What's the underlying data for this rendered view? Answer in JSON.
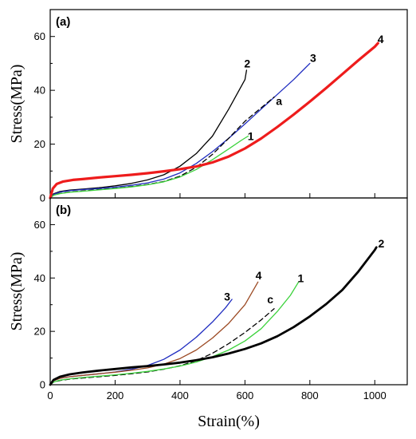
{
  "chart_data": [
    {
      "panel": "(a)",
      "type": "line",
      "xlim": [
        0,
        1100
      ],
      "ylim": [
        0,
        70
      ],
      "xticks": [],
      "yticks": [
        0,
        20,
        40,
        60
      ],
      "ylabel": "Stress(MPa)",
      "xlabel": "",
      "grid": false,
      "series": [
        {
          "label": "2",
          "color": "#000000",
          "width": 1.3,
          "dash": "",
          "points": [
            [
              0,
              0
            ],
            [
              10,
              1.5
            ],
            [
              30,
              2.4
            ],
            [
              60,
              2.9
            ],
            [
              100,
              3.3
            ],
            [
              150,
              3.8
            ],
            [
              200,
              4.5
            ],
            [
              250,
              5.4
            ],
            [
              300,
              6.7
            ],
            [
              350,
              8.6
            ],
            [
              400,
              11.8
            ],
            [
              450,
              16.5
            ],
            [
              500,
              23
            ],
            [
              550,
              33
            ],
            [
              600,
              44
            ],
            [
              605,
              47.5
            ]
          ],
          "label_at": [
            607,
            50
          ]
        },
        {
          "label": "3",
          "color": "#1f2cc0",
          "width": 1.3,
          "dash": "",
          "points": [
            [
              0,
              0
            ],
            [
              10,
              1.3
            ],
            [
              30,
              2.2
            ],
            [
              60,
              2.7
            ],
            [
              100,
              3.1
            ],
            [
              150,
              3.5
            ],
            [
              200,
              4.0
            ],
            [
              250,
              4.7
            ],
            [
              300,
              5.6
            ],
            [
              350,
              7.0
            ],
            [
              400,
              9.3
            ],
            [
              450,
              12.8
            ],
            [
              500,
              17.2
            ],
            [
              550,
              22.2
            ],
            [
              600,
              27.5
            ],
            [
              650,
              33
            ],
            [
              700,
              38.5
            ],
            [
              750,
              44
            ],
            [
              800,
              50
            ]
          ],
          "label_at": [
            810,
            52
          ]
        },
        {
          "label": "a",
          "color": "#000000",
          "width": 1.3,
          "dash": "6,4",
          "points": [
            [
              0,
              0
            ],
            [
              10,
              1.0
            ],
            [
              30,
              1.7
            ],
            [
              60,
              2.2
            ],
            [
              100,
              2.6
            ],
            [
              150,
              3.1
            ],
            [
              200,
              3.6
            ],
            [
              250,
              4.2
            ],
            [
              300,
              5.0
            ],
            [
              350,
              6.1
            ],
            [
              400,
              8.1
            ],
            [
              450,
              11.4
            ],
            [
              500,
              16.2
            ],
            [
              550,
              22.2
            ],
            [
              600,
              28.5
            ],
            [
              650,
              33.5
            ],
            [
              690,
              37.5
            ]
          ],
          "label_at": [
            705,
            36
          ]
        },
        {
          "label": "1",
          "color": "#3cd23c",
          "width": 1.3,
          "dash": "",
          "points": [
            [
              0,
              0
            ],
            [
              10,
              1.0
            ],
            [
              30,
              1.6
            ],
            [
              60,
              2.1
            ],
            [
              100,
              2.5
            ],
            [
              150,
              3.0
            ],
            [
              200,
              3.5
            ],
            [
              250,
              4.1
            ],
            [
              300,
              4.9
            ],
            [
              350,
              6.0
            ],
            [
              400,
              7.8
            ],
            [
              450,
              10.6
            ],
            [
              500,
              14.2
            ],
            [
              550,
              18.2
            ],
            [
              590,
              21.5
            ],
            [
              610,
              23
            ]
          ],
          "label_at": [
            618,
            23
          ]
        },
        {
          "label": "4",
          "color": "#ee1c1c",
          "width": 3.2,
          "dash": "",
          "points": [
            [
              0,
              0
            ],
            [
              8,
              3.5
            ],
            [
              20,
              5.2
            ],
            [
              40,
              6.1
            ],
            [
              70,
              6.7
            ],
            [
              100,
              7.0
            ],
            [
              150,
              7.6
            ],
            [
              200,
              8.1
            ],
            [
              250,
              8.6
            ],
            [
              300,
              9.2
            ],
            [
              350,
              9.9
            ],
            [
              400,
              10.7
            ],
            [
              450,
              11.7
            ],
            [
              500,
              13.2
            ],
            [
              550,
              15.4
            ],
            [
              600,
              18.4
            ],
            [
              650,
              22.1
            ],
            [
              700,
              26.4
            ],
            [
              750,
              31
            ],
            [
              800,
              35.8
            ],
            [
              850,
              40.8
            ],
            [
              900,
              46
            ],
            [
              950,
              51.2
            ],
            [
              1000,
              56.2
            ],
            [
              1010,
              57.5
            ]
          ],
          "label_at": [
            1018,
            59
          ]
        }
      ]
    },
    {
      "panel": "(b)",
      "type": "line",
      "xlim": [
        0,
        1100
      ],
      "ylim": [
        0,
        70
      ],
      "xticks": [
        0,
        200,
        400,
        600,
        800,
        1000
      ],
      "yticks": [
        0,
        20,
        40,
        60
      ],
      "ylabel": "Stress(MPa)",
      "xlabel": "Strain(%)",
      "grid": false,
      "series": [
        {
          "label": "3",
          "color": "#1f2cc0",
          "width": 1.3,
          "dash": "",
          "points": [
            [
              0,
              0
            ],
            [
              10,
              1.5
            ],
            [
              30,
              2.4
            ],
            [
              60,
              3.0
            ],
            [
              100,
              3.5
            ],
            [
              150,
              4.1
            ],
            [
              200,
              4.8
            ],
            [
              250,
              5.8
            ],
            [
              300,
              7.2
            ],
            [
              350,
              9.5
            ],
            [
              400,
              13
            ],
            [
              450,
              17.8
            ],
            [
              500,
              23.5
            ],
            [
              540,
              28.8
            ],
            [
              560,
              32
            ]
          ],
          "label_at": [
            545,
            33
          ]
        },
        {
          "label": "4",
          "color": "#9c4a24",
          "width": 1.3,
          "dash": "",
          "points": [
            [
              0,
              0
            ],
            [
              10,
              1.5
            ],
            [
              30,
              2.4
            ],
            [
              60,
              3.0
            ],
            [
              100,
              3.5
            ],
            [
              150,
              4.1
            ],
            [
              200,
              4.7
            ],
            [
              250,
              5.4
            ],
            [
              300,
              6.3
            ],
            [
              350,
              7.7
            ],
            [
              400,
              9.8
            ],
            [
              450,
              13
            ],
            [
              500,
              17.5
            ],
            [
              550,
              23
            ],
            [
              600,
              30
            ],
            [
              640,
              38.5
            ]
          ],
          "label_at": [
            642,
            41
          ]
        },
        {
          "label": "c",
          "color": "#000000",
          "width": 1.3,
          "dash": "6,4",
          "points": [
            [
              0,
              0
            ],
            [
              10,
              1.0
            ],
            [
              30,
              1.6
            ],
            [
              60,
              2.1
            ],
            [
              100,
              2.5
            ],
            [
              150,
              3.0
            ],
            [
              200,
              3.5
            ],
            [
              250,
              4.1
            ],
            [
              300,
              4.8
            ],
            [
              350,
              5.8
            ],
            [
              400,
              7.1
            ],
            [
              450,
              9.0
            ],
            [
              500,
              11.8
            ],
            [
              550,
              15.4
            ],
            [
              600,
              19.6
            ],
            [
              650,
              24.3
            ],
            [
              690,
              28.5
            ]
          ],
          "label_at": [
            678,
            32
          ]
        },
        {
          "label": "1",
          "color": "#3cd23c",
          "width": 1.3,
          "dash": "",
          "points": [
            [
              0,
              0
            ],
            [
              10,
              1.0
            ],
            [
              30,
              1.7
            ],
            [
              60,
              2.2
            ],
            [
              100,
              2.7
            ],
            [
              150,
              3.2
            ],
            [
              200,
              3.7
            ],
            [
              250,
              4.3
            ],
            [
              300,
              5.0
            ],
            [
              350,
              5.9
            ],
            [
              400,
              7.0
            ],
            [
              450,
              8.5
            ],
            [
              500,
              10.5
            ],
            [
              550,
              13
            ],
            [
              600,
              16.4
            ],
            [
              650,
              21
            ],
            [
              700,
              27.5
            ],
            [
              740,
              33.5
            ],
            [
              765,
              38.5
            ]
          ],
          "label_at": [
            772,
            40
          ]
        },
        {
          "label": "2",
          "color": "#000000",
          "width": 2.8,
          "dash": "",
          "points": [
            [
              0,
              0
            ],
            [
              10,
              1.8
            ],
            [
              30,
              3.0
            ],
            [
              60,
              3.9
            ],
            [
              100,
              4.6
            ],
            [
              150,
              5.3
            ],
            [
              200,
              5.9
            ],
            [
              250,
              6.5
            ],
            [
              300,
              7.0
            ],
            [
              350,
              7.6
            ],
            [
              400,
              8.3
            ],
            [
              450,
              9.2
            ],
            [
              500,
              10.3
            ],
            [
              550,
              11.7
            ],
            [
              600,
              13.4
            ],
            [
              650,
              15.5
            ],
            [
              700,
              18.2
            ],
            [
              750,
              21.6
            ],
            [
              800,
              25.6
            ],
            [
              850,
              30.2
            ],
            [
              900,
              35.5
            ],
            [
              950,
              42.5
            ],
            [
              1000,
              50.5
            ],
            [
              1005,
              51.5
            ]
          ],
          "label_at": [
            1020,
            53
          ]
        }
      ]
    }
  ]
}
